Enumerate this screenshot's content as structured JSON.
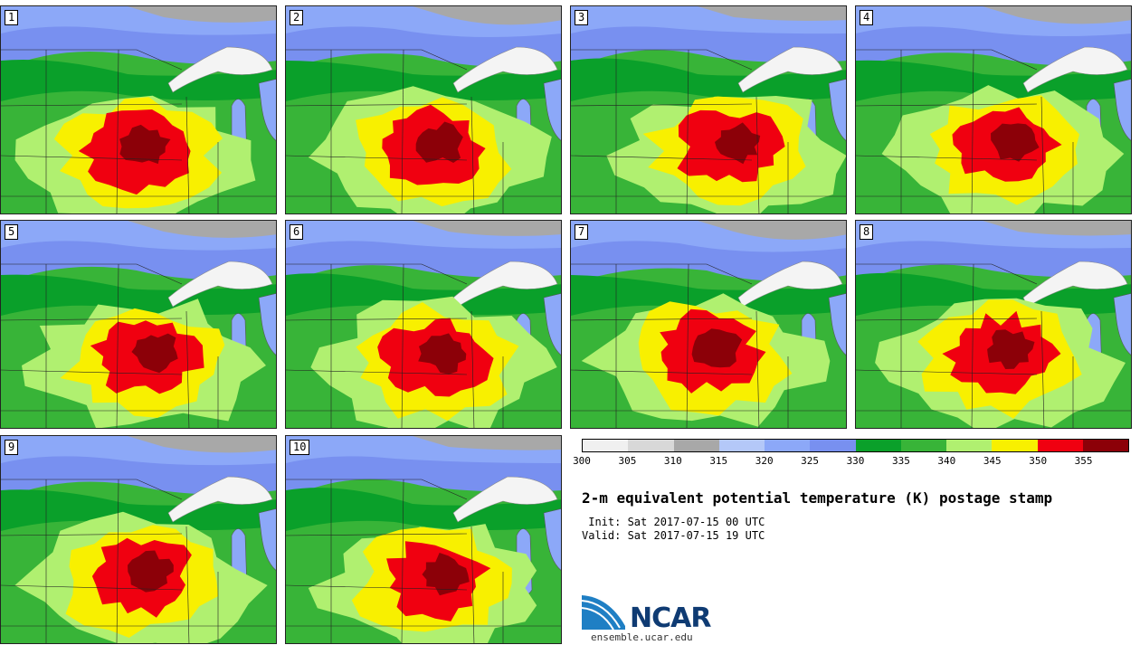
{
  "panels": [
    {
      "label": "1"
    },
    {
      "label": "2"
    },
    {
      "label": "3"
    },
    {
      "label": "4"
    },
    {
      "label": "5"
    },
    {
      "label": "6"
    },
    {
      "label": "7"
    },
    {
      "label": "8"
    },
    {
      "label": "9"
    },
    {
      "label": "10"
    }
  ],
  "colorbar": {
    "colors": [
      "#f0f0f0",
      "#d8d8d8",
      "#a8a8a8",
      "#b4c8f8",
      "#8ca8f8",
      "#7890f0",
      "#0aa02a",
      "#38b438",
      "#b0f070",
      "#f8f000",
      "#f00010",
      "#8c0008"
    ],
    "tick_labels": [
      "300",
      "305",
      "310",
      "315",
      "320",
      "325",
      "330",
      "335",
      "340",
      "345",
      "350",
      "355"
    ]
  },
  "title": "2-m equivalent potential temperature (K) postage stamp",
  "init_line": " Init: Sat 2017-07-15 00 UTC",
  "valid_line": "Valid: Sat 2017-07-15 19 UTC",
  "logo": {
    "text": "NCAR",
    "url": "ensemble.ucar.edu"
  }
}
